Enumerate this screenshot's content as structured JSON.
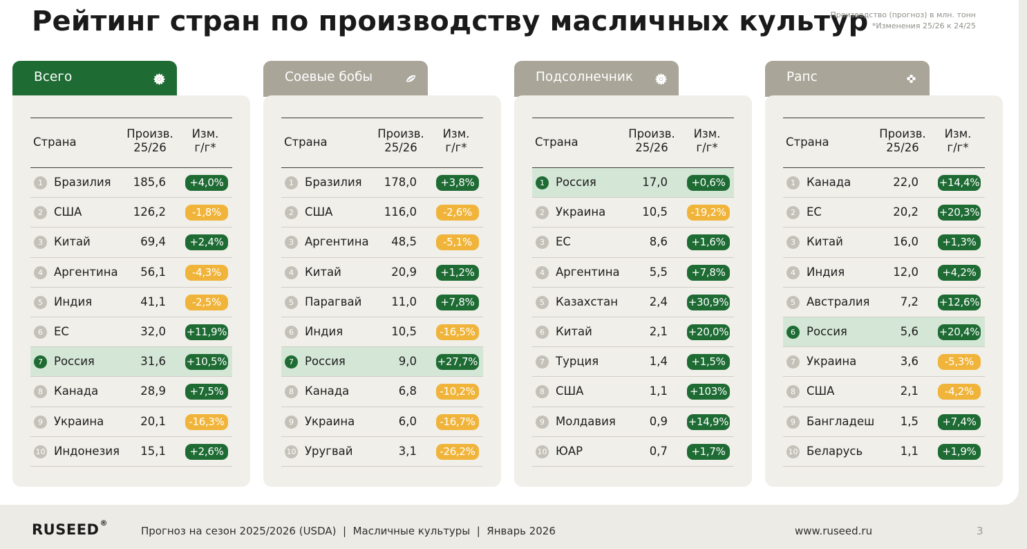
{
  "title": "Рейтинг стран по производству масличных культур",
  "note": {
    "line1": "Производство (прогноз) в млн. тонн",
    "line2": "*Изменения 25/26 к 24/25"
  },
  "table_headers": {
    "country": "Страна",
    "production_line1": "Произв.",
    "production_line2": "25/26",
    "change_line1": "Изм.",
    "change_line2": "г/г*"
  },
  "colors": {
    "green": "#1e6b34",
    "tab_gray": "#a9a598",
    "negative": "#f0b43a",
    "highlight": "#d4e6d6"
  },
  "panels": [
    {
      "title": "Всего",
      "icon": "sunflower-icon",
      "active": true,
      "rows": [
        {
          "rank": "1",
          "country": "Бразилия",
          "value": "185,6",
          "change": "+4,0%",
          "positive": true,
          "highlight": false
        },
        {
          "rank": "2",
          "country": "США",
          "value": "126,2",
          "change": "-1,8%",
          "positive": false,
          "highlight": false
        },
        {
          "rank": "3",
          "country": "Китай",
          "value": "69,4",
          "change": "+2,4%",
          "positive": true,
          "highlight": false
        },
        {
          "rank": "4",
          "country": "Аргентина",
          "value": "56,1",
          "change": "-4,3%",
          "positive": false,
          "highlight": false
        },
        {
          "rank": "5",
          "country": "Индия",
          "value": "41,1",
          "change": "-2,5%",
          "positive": false,
          "highlight": false
        },
        {
          "rank": "6",
          "country": "ЕС",
          "value": "32,0",
          "change": "+11,9%",
          "positive": true,
          "highlight": false
        },
        {
          "rank": "7",
          "country": "Россия",
          "value": "31,6",
          "change": "+10,5%",
          "positive": true,
          "highlight": true
        },
        {
          "rank": "8",
          "country": "Канада",
          "value": "28,9",
          "change": "+7,5%",
          "positive": true,
          "highlight": false
        },
        {
          "rank": "9",
          "country": "Украина",
          "value": "20,1",
          "change": "-16,3%",
          "positive": false,
          "highlight": false
        },
        {
          "rank": "10",
          "country": "Индонезия",
          "value": "15,1",
          "change": "+2,6%",
          "positive": true,
          "highlight": false
        }
      ]
    },
    {
      "title": "Соевые бобы",
      "icon": "soybean-icon",
      "active": false,
      "rows": [
        {
          "rank": "1",
          "country": "Бразилия",
          "value": "178,0",
          "change": "+3,8%",
          "positive": true,
          "highlight": false
        },
        {
          "rank": "2",
          "country": "США",
          "value": "116,0",
          "change": "-2,6%",
          "positive": false,
          "highlight": false
        },
        {
          "rank": "3",
          "country": "Аргентина",
          "value": "48,5",
          "change": "-5,1%",
          "positive": false,
          "highlight": false
        },
        {
          "rank": "4",
          "country": "Китай",
          "value": "20,9",
          "change": "+1,2%",
          "positive": true,
          "highlight": false
        },
        {
          "rank": "5",
          "country": "Парагвай",
          "value": "11,0",
          "change": "+7,8%",
          "positive": true,
          "highlight": false
        },
        {
          "rank": "6",
          "country": "Индия",
          "value": "10,5",
          "change": "-16,5%",
          "positive": false,
          "highlight": false
        },
        {
          "rank": "7",
          "country": "Россия",
          "value": "9,0",
          "change": "+27,7%",
          "positive": true,
          "highlight": true
        },
        {
          "rank": "8",
          "country": "Канада",
          "value": "6,8",
          "change": "-10,2%",
          "positive": false,
          "highlight": false
        },
        {
          "rank": "9",
          "country": "Украина",
          "value": "6,0",
          "change": "-16,7%",
          "positive": false,
          "highlight": false
        },
        {
          "rank": "10",
          "country": "Уругвай",
          "value": "3,1",
          "change": "-26,2%",
          "positive": false,
          "highlight": false
        }
      ]
    },
    {
      "title": "Подсолнечник",
      "icon": "sunflower-icon",
      "active": false,
      "rows": [
        {
          "rank": "1",
          "country": "Россия",
          "value": "17,0",
          "change": "+0,6%",
          "positive": true,
          "highlight": true
        },
        {
          "rank": "2",
          "country": "Украина",
          "value": "10,5",
          "change": "-19,2%",
          "positive": false,
          "highlight": false
        },
        {
          "rank": "3",
          "country": "ЕС",
          "value": "8,6",
          "change": "+1,6%",
          "positive": true,
          "highlight": false
        },
        {
          "rank": "4",
          "country": "Аргентина",
          "value": "5,5",
          "change": "+7,8%",
          "positive": true,
          "highlight": false
        },
        {
          "rank": "5",
          "country": "Казахстан",
          "value": "2,4",
          "change": "+30,9%",
          "positive": true,
          "highlight": false
        },
        {
          "rank": "6",
          "country": "Китай",
          "value": "2,1",
          "change": "+20,0%",
          "positive": true,
          "highlight": false
        },
        {
          "rank": "7",
          "country": "Турция",
          "value": "1,4",
          "change": "+1,5%",
          "positive": true,
          "highlight": false
        },
        {
          "rank": "8",
          "country": "США",
          "value": "1,1",
          "change": "+103%",
          "positive": true,
          "highlight": false
        },
        {
          "rank": "9",
          "country": "Молдавия",
          "value": "0,9",
          "change": "+14,9%",
          "positive": true,
          "highlight": false
        },
        {
          "rank": "10",
          "country": "ЮАР",
          "value": "0,7",
          "change": "+1,7%",
          "positive": true,
          "highlight": false
        }
      ]
    },
    {
      "title": "Рапс",
      "icon": "rapeseed-flower-icon",
      "active": false,
      "rows": [
        {
          "rank": "1",
          "country": "Канада",
          "value": "22,0",
          "change": "+14,4%",
          "positive": true,
          "highlight": false
        },
        {
          "rank": "2",
          "country": "ЕС",
          "value": "20,2",
          "change": "+20,3%",
          "positive": true,
          "highlight": false
        },
        {
          "rank": "3",
          "country": "Китай",
          "value": "16,0",
          "change": "+1,3%",
          "positive": true,
          "highlight": false
        },
        {
          "rank": "4",
          "country": "Индия",
          "value": "12,0",
          "change": "+4,2%",
          "positive": true,
          "highlight": false
        },
        {
          "rank": "5",
          "country": "Австралия",
          "value": "7,2",
          "change": "+12,6%",
          "positive": true,
          "highlight": false
        },
        {
          "rank": "6",
          "country": "Россия",
          "value": "5,6",
          "change": "+20,4%",
          "positive": true,
          "highlight": true
        },
        {
          "rank": "7",
          "country": "Украина",
          "value": "3,6",
          "change": "-5,3%",
          "positive": false,
          "highlight": false
        },
        {
          "rank": "8",
          "country": "США",
          "value": "2,1",
          "change": "-4,2%",
          "positive": false,
          "highlight": false
        },
        {
          "rank": "9",
          "country": "Бангладеш",
          "value": "1,5",
          "change": "+7,4%",
          "positive": true,
          "highlight": false
        },
        {
          "rank": "10",
          "country": "Беларусь",
          "value": "1,1",
          "change": "+1,9%",
          "positive": true,
          "highlight": false
        }
      ]
    }
  ],
  "footer": {
    "logo": "RUSEED",
    "logo_mark": "®",
    "text": "Прогноз на сезон 2025/2026 (USDA)  |  Масличные культуры  |  Январь 2026",
    "url": "www.ruseed.ru",
    "page": "3"
  }
}
